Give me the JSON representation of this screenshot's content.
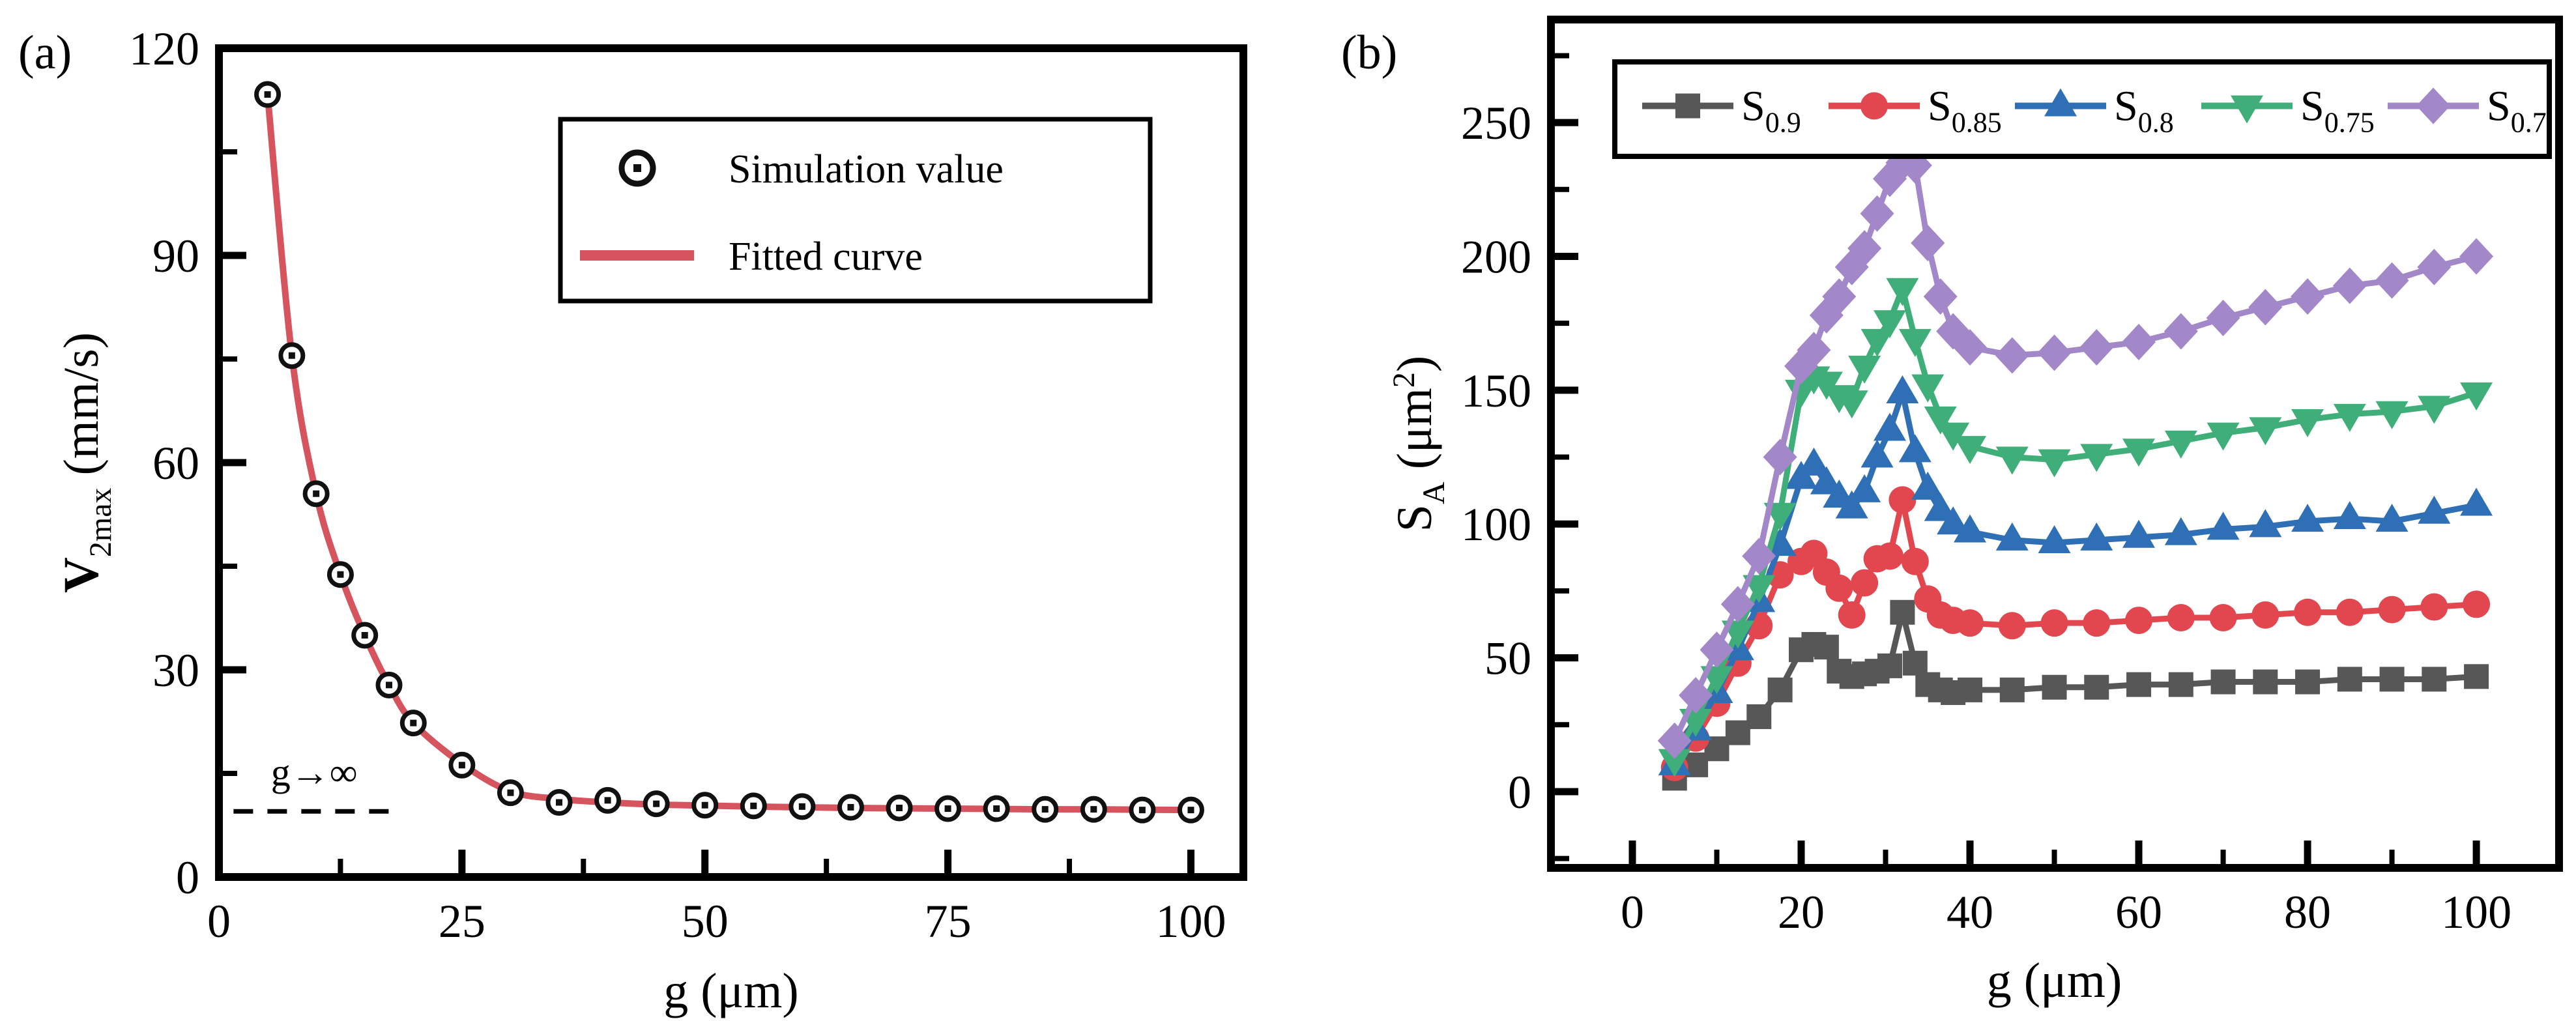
{
  "figure": {
    "background": "#ffffff",
    "axis_color": "#000000"
  },
  "chart_data": [
    {
      "id": "panel_a",
      "type": "scatter",
      "panel_label": "(a)",
      "xlabel": "g (μm)",
      "ylabel_main": "V",
      "ylabel_sub": "2max",
      "ylabel_rest": " (mm/s)",
      "xlim": [
        0,
        105.4
      ],
      "ylim": [
        0,
        120
      ],
      "x_ticks": [
        0,
        25,
        50,
        75,
        100
      ],
      "x_minor": [
        12.5,
        37.5,
        62.5,
        87.5
      ],
      "y_ticks": [
        0,
        30,
        60,
        90,
        120
      ],
      "y_minor": [
        15,
        45,
        75,
        105
      ],
      "legend": [
        {
          "label": "Simulation value",
          "marker": "circle-dot",
          "color": "#111111"
        },
        {
          "label": "Fitted curve",
          "marker": "line",
          "color": "#d6545e"
        }
      ],
      "annotation": {
        "text": "g→∞",
        "line_y": 9.5,
        "line_x": [
          1.5,
          18
        ]
      },
      "series": [
        {
          "name": "Simulation value",
          "marker": "circle-dot",
          "color": "#111111",
          "x": [
            5,
            7.5,
            10,
            12.5,
            15,
            17.5,
            20,
            25,
            30,
            35,
            40,
            45,
            50,
            55,
            60,
            65,
            70,
            75,
            80,
            85,
            90,
            95,
            100
          ],
          "y": [
            113.3,
            75.5,
            55.5,
            43.8,
            35.0,
            27.8,
            22.3,
            16.2,
            12.2,
            10.8,
            11.1,
            10.6,
            10.4,
            10.3,
            10.2,
            10.1,
            10.0,
            9.9,
            9.9,
            9.8,
            9.8,
            9.7,
            9.7
          ]
        },
        {
          "name": "Fitted curve",
          "type": "smooth-line",
          "color": "#d6545e",
          "x": [
            5,
            7.5,
            10,
            12.5,
            15,
            17.5,
            20,
            25,
            30,
            35,
            40,
            45,
            50,
            55,
            60,
            65,
            70,
            75,
            80,
            85,
            90,
            95,
            100
          ],
          "y": [
            113.3,
            75.5,
            55.5,
            43.8,
            35.0,
            27.8,
            22.3,
            16.4,
            12.4,
            11.3,
            10.8,
            10.5,
            10.35,
            10.2,
            10.1,
            10.0,
            9.95,
            9.9,
            9.85,
            9.8,
            9.8,
            9.75,
            9.7
          ]
        }
      ]
    },
    {
      "id": "panel_b",
      "type": "line",
      "panel_label": "(b)",
      "xlabel": "g (μm)",
      "ylabel_main": "S",
      "ylabel_sub": "A",
      "ylabel_rest": " (μm",
      "ylabel_sup": "2",
      "ylabel_close": ")",
      "xlim": [
        -9.65,
        109.8
      ],
      "ylim": [
        -28.5,
        288.5
      ],
      "x_ticks": [
        0,
        20,
        40,
        60,
        80,
        100
      ],
      "x_minor": [
        10,
        30,
        50,
        70,
        90
      ],
      "y_ticks": [
        0,
        50,
        100,
        150,
        200,
        250
      ],
      "y_minor": [
        -25,
        25,
        75,
        125,
        175,
        225,
        275
      ],
      "x_shared": [
        5,
        7.5,
        10,
        12.5,
        15,
        17.5,
        20,
        21.5,
        23,
        24.5,
        26,
        27.5,
        29,
        30.5,
        32,
        33.5,
        35,
        36.5,
        38,
        40,
        45,
        50,
        55,
        60,
        65,
        70,
        75,
        80,
        85,
        90,
        95,
        100
      ],
      "series": [
        {
          "key": "S09",
          "label_main": "S",
          "label_sub": "0.9",
          "marker": "square",
          "color": "#575757",
          "y": [
            5,
            10,
            16,
            22,
            28,
            38,
            53,
            55,
            54,
            45,
            43,
            44,
            45,
            47,
            67,
            48,
            40,
            38,
            37,
            38,
            38,
            39,
            39,
            40,
            40,
            41,
            41,
            41,
            42,
            42,
            42,
            43
          ]
        },
        {
          "key": "S085",
          "label_main": "S",
          "label_sub": "0.85",
          "marker": "circle",
          "color": "#e2474f",
          "y": [
            9,
            20,
            33,
            48,
            62,
            81,
            86,
            89,
            82,
            76,
            66,
            78,
            87,
            88,
            109,
            86,
            72,
            66,
            64,
            63,
            62,
            63,
            63,
            64,
            65,
            65,
            66,
            67,
            67,
            68,
            69,
            70
          ]
        },
        {
          "key": "S08",
          "label_main": "S",
          "label_sub": "0.8",
          "marker": "triangle-up",
          "color": "#2e6fb5",
          "y": [
            10,
            23,
            37,
            53,
            71,
            92,
            117,
            122,
            115,
            110,
            106,
            112,
            125,
            135,
            149,
            127,
            113,
            105,
            100,
            97,
            94,
            93,
            94,
            95,
            96,
            98,
            99,
            101,
            102,
            101,
            104,
            107
          ]
        },
        {
          "key": "S075",
          "label_main": "S",
          "label_sub": "0.75",
          "marker": "triangle-down",
          "color": "#3fae78",
          "y": [
            12,
            27,
            43,
            60,
            77,
            104,
            150,
            155,
            153,
            148,
            146,
            159,
            169,
            176,
            188,
            169,
            152,
            140,
            134,
            129,
            125,
            124,
            126,
            128,
            131,
            134,
            136,
            139,
            141,
            142,
            144,
            149
          ]
        },
        {
          "key": "S07",
          "label_main": "S",
          "label_sub": "0.7",
          "marker": "diamond",
          "color": "#a287c9",
          "y": [
            19,
            36,
            53,
            70,
            88,
            125,
            159,
            165,
            178,
            185,
            196,
            203,
            216,
            229,
            235,
            234,
            205,
            185,
            172,
            166,
            163,
            164,
            166,
            168,
            172,
            177,
            181,
            185,
            189,
            191,
            196,
            200
          ]
        }
      ]
    }
  ]
}
